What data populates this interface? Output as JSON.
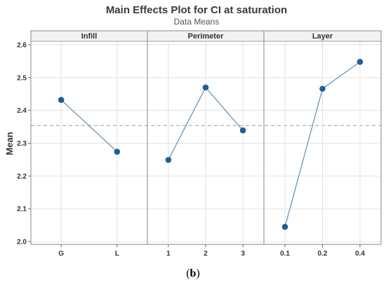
{
  "chart_data": {
    "type": "line",
    "title": "Main Effects Plot for CI at saturation",
    "subtitle": "Data Means",
    "ylabel": "Mean",
    "ylim": [
      2.0,
      2.6
    ],
    "yticks": [
      "2.0",
      "2.1",
      "2.2",
      "2.3",
      "2.4",
      "2.5",
      "2.6"
    ],
    "reference_line": 2.354,
    "grid": true,
    "point_color": "#1f5f96",
    "line_color": "#5b8fb8",
    "panels": [
      {
        "name": "Infill",
        "categories": [
          "G",
          "L"
        ],
        "values": [
          2.432,
          2.274
        ]
      },
      {
        "name": "Perimeter",
        "categories": [
          "1",
          "2",
          "3"
        ],
        "values": [
          2.249,
          2.47,
          2.339
        ]
      },
      {
        "name": "Layer",
        "categories": [
          "0.1",
          "0.2",
          "0.4"
        ],
        "values": [
          2.045,
          2.466,
          2.548
        ]
      }
    ]
  },
  "caption": {
    "open": "(",
    "letter": "b",
    "close": ")"
  }
}
